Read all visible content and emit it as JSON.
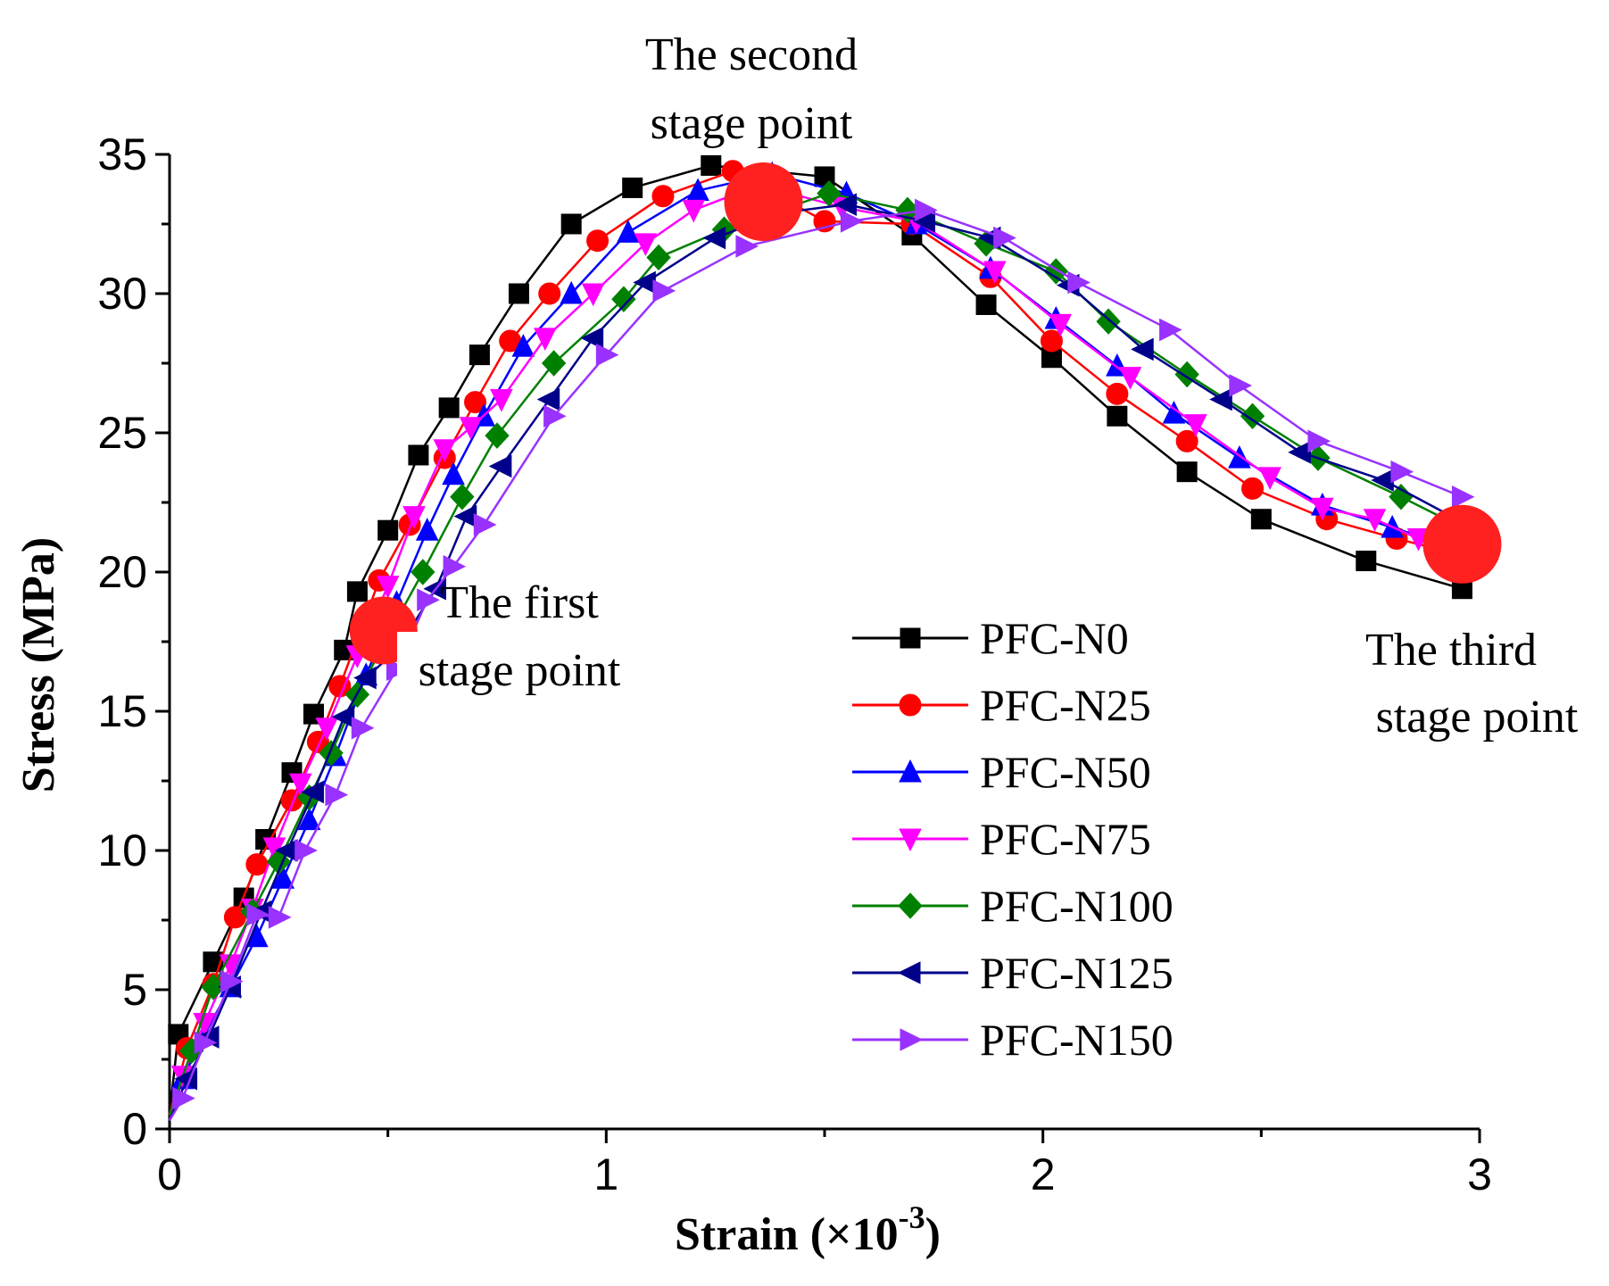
{
  "chart_data": {
    "type": "line",
    "title": "",
    "xlabel": "Strain (×10",
    "xlabel_sup": "-3",
    "xlabel_end": ")",
    "ylabel": "Stress (MPa)",
    "xlim": [
      0,
      3
    ],
    "ylim": [
      0,
      35
    ],
    "xticks": [
      0,
      1,
      2,
      3
    ],
    "yticks": [
      0,
      5,
      10,
      15,
      20,
      25,
      30,
      35
    ],
    "grid": false,
    "legend_position": "center-right",
    "series": [
      {
        "name": "PFC-N0",
        "color": "#000000",
        "marker": "square",
        "x": [
          0,
          0.02,
          0.1,
          0.17,
          0.22,
          0.28,
          0.33,
          0.4,
          0.43,
          0.5,
          0.57,
          0.64,
          0.71,
          0.8,
          0.92,
          1.06,
          1.24,
          1.5,
          1.7,
          1.87,
          2.02,
          2.17,
          2.33,
          2.5,
          2.74,
          2.96
        ],
        "y": [
          0.5,
          3.4,
          6,
          8.3,
          10.4,
          12.8,
          14.9,
          17.2,
          19.3,
          21.5,
          24.2,
          25.9,
          27.8,
          30,
          32.5,
          33.8,
          34.6,
          34.2,
          32.1,
          29.6,
          27.7,
          25.6,
          23.6,
          21.9,
          20.4,
          19.4
        ]
      },
      {
        "name": "PFC-N25",
        "color": "#ff0000",
        "marker": "circle",
        "x": [
          0,
          0.04,
          0.1,
          0.15,
          0.2,
          0.28,
          0.34,
          0.39,
          0.48,
          0.55,
          0.63,
          0.7,
          0.78,
          0.87,
          0.98,
          1.13,
          1.29,
          1.5,
          1.7,
          1.88,
          2.02,
          2.17,
          2.33,
          2.48,
          2.65,
          2.81,
          2.96
        ],
        "y": [
          0.5,
          2.9,
          5.2,
          7.6,
          9.5,
          11.8,
          13.9,
          15.9,
          19.7,
          21.7,
          24.1,
          26.1,
          28.3,
          30,
          31.9,
          33.5,
          34.4,
          32.6,
          32.5,
          30.6,
          28.3,
          26.4,
          24.7,
          23,
          21.9,
          21.2,
          20.6
        ]
      },
      {
        "name": "PFC-N50",
        "color": "#0000ff",
        "marker": "triangle-up",
        "x": [
          0,
          0.03,
          0.08,
          0.14,
          0.2,
          0.26,
          0.32,
          0.38,
          0.45,
          0.52,
          0.59,
          0.65,
          0.72,
          0.81,
          0.92,
          1.05,
          1.21,
          1.38,
          1.55,
          1.71,
          1.88,
          2.03,
          2.17,
          2.3,
          2.45,
          2.64,
          2.8,
          2.96
        ],
        "y": [
          0.3,
          1.8,
          3.4,
          5.1,
          6.9,
          9,
          11.1,
          13.4,
          16.3,
          18.9,
          21.5,
          23.5,
          25.6,
          28.1,
          30,
          32.2,
          33.7,
          34.3,
          33.6,
          32.5,
          30.9,
          29.1,
          27.4,
          25.7,
          24.1,
          22.4,
          21.6,
          20.8
        ]
      },
      {
        "name": "PFC-N75",
        "color": "#ff00ff",
        "marker": "triangle-down",
        "x": [
          0,
          0.03,
          0.08,
          0.14,
          0.19,
          0.24,
          0.3,
          0.36,
          0.43,
          0.5,
          0.56,
          0.63,
          0.69,
          0.76,
          0.86,
          0.97,
          1.09,
          1.2,
          1.35,
          1.54,
          1.71,
          1.89,
          2.04,
          2.2,
          2.35,
          2.52,
          2.64,
          2.76,
          2.86,
          2.96
        ],
        "y": [
          0.3,
          1.9,
          3.8,
          5.9,
          7.9,
          10.1,
          12.4,
          14.4,
          17,
          19.5,
          22,
          24.4,
          25.2,
          26.2,
          28.4,
          30,
          31.8,
          33,
          33.9,
          33.1,
          32.6,
          30.8,
          28.9,
          27,
          25.3,
          23.4,
          22.3,
          21.9,
          21.2,
          20.6
        ]
      },
      {
        "name": "PFC-N100",
        "color": "#008000",
        "marker": "diamond",
        "x": [
          0,
          0.05,
          0.1,
          0.19,
          0.25,
          0.32,
          0.37,
          0.43,
          0.51,
          0.58,
          0.67,
          0.75,
          0.88,
          1.04,
          1.12,
          1.27,
          1.51,
          1.69,
          1.87,
          2.03,
          2.15,
          2.33,
          2.48,
          2.63,
          2.82,
          2.96
        ],
        "y": [
          0.5,
          2.8,
          5.1,
          7.8,
          9.6,
          11.9,
          13.5,
          15.6,
          18,
          20,
          22.7,
          24.9,
          27.5,
          29.8,
          31.3,
          32.3,
          33.6,
          33,
          31.8,
          30.8,
          29,
          27.1,
          25.6,
          24.1,
          22.7,
          21.6
        ]
      },
      {
        "name": "PFC-N125",
        "color": "#00008b",
        "marker": "triangle-left",
        "x": [
          0,
          0.04,
          0.09,
          0.14,
          0.21,
          0.27,
          0.33,
          0.4,
          0.45,
          0.52,
          0.61,
          0.68,
          0.76,
          0.87,
          0.97,
          1.09,
          1.25,
          1.4,
          1.55,
          1.73,
          1.88,
          2.06,
          2.23,
          2.41,
          2.59,
          2.78,
          2.96
        ],
        "y": [
          0.3,
          1.8,
          3.3,
          5.1,
          7.8,
          10,
          12.1,
          14.8,
          16.2,
          17.2,
          19.4,
          22,
          23.8,
          26.2,
          28.4,
          30.4,
          32,
          32.9,
          33.2,
          32.6,
          32,
          30.3,
          28,
          26.2,
          24.3,
          23.3,
          21.8
        ]
      },
      {
        "name": "PFC-N150",
        "color": "#9932ff",
        "marker": "triangle-right",
        "x": [
          0,
          0.03,
          0.08,
          0.14,
          0.2,
          0.25,
          0.31,
          0.38,
          0.44,
          0.52,
          0.59,
          0.65,
          0.72,
          0.88,
          1,
          1.13,
          1.32,
          1.56,
          1.73,
          1.91,
          2.08,
          2.29,
          2.45,
          2.63,
          2.82,
          2.96
        ],
        "y": [
          0.3,
          1.1,
          3.1,
          5.3,
          7.7,
          7.6,
          10,
          12,
          14.4,
          16.5,
          19,
          20.2,
          21.7,
          25.6,
          27.8,
          30.1,
          31.7,
          32.6,
          33,
          32,
          30.4,
          28.7,
          26.7,
          24.7,
          23.6,
          22.7
        ]
      }
    ],
    "stage_points": [
      {
        "x": 0.49,
        "y": 17.9,
        "color": "#ff2020"
      },
      {
        "x": 1.36,
        "y": 33.3,
        "color": "#ff2020"
      },
      {
        "x": 2.96,
        "y": 21,
        "color": "#ff2020"
      }
    ],
    "annotations": [
      {
        "id": "first",
        "lines": [
          "The first",
          "stage point"
        ]
      },
      {
        "id": "second",
        "lines": [
          "The second",
          "stage point"
        ]
      },
      {
        "id": "third",
        "lines": [
          "The third",
          "stage point"
        ]
      }
    ]
  }
}
